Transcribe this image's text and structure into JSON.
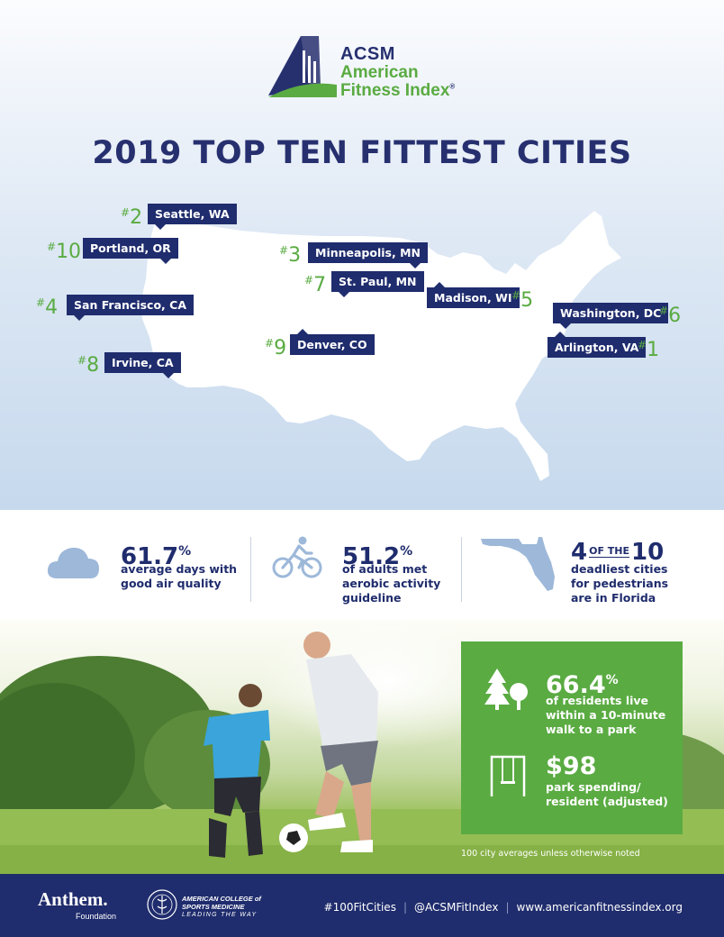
{
  "logo": {
    "acronym": "ACSM",
    "line1": "American",
    "line2": "Fitness Index",
    "registered": "®"
  },
  "headline": "2019 TOP TEN FITTEST CITIES",
  "cities": [
    {
      "rank_num": "2",
      "name": "Seattle, WA"
    },
    {
      "rank_num": "10",
      "name": "Portland, OR"
    },
    {
      "rank_num": "3",
      "name": "Minneapolis, MN"
    },
    {
      "rank_num": "7",
      "name": "St. Paul, MN"
    },
    {
      "rank_num": "5",
      "name": "Madison, WI"
    },
    {
      "rank_num": "4",
      "name": "San Francisco, CA"
    },
    {
      "rank_num": "6",
      "name": "Washington, DC"
    },
    {
      "rank_num": "9",
      "name": "Denver, CO"
    },
    {
      "rank_num": "1",
      "name": "Arlington, VA"
    },
    {
      "rank_num": "8",
      "name": "Irvine, CA"
    }
  ],
  "rank_hash": "#",
  "stats": {
    "air": {
      "value": "61.7",
      "unit": "%",
      "line1": "average days with",
      "line2": "good air quality",
      "icon": "cloud-icon"
    },
    "aerobic": {
      "value": "51.2",
      "unit": "%",
      "line1": "of adults met",
      "line2": "aerobic activity",
      "line3": "guideline",
      "icon": "cyclist-icon"
    },
    "pedestrian": {
      "num1": "4",
      "of_the": "OF THE",
      "num2": "10",
      "line1": "deadliest cities",
      "line2": "for pedestrians",
      "line3": "are in Florida",
      "icon": "florida-map-icon"
    }
  },
  "parks": {
    "walk": {
      "value": "66.4",
      "unit": "%",
      "line1": "of residents live",
      "line2": "within a 10-minute",
      "line3": "walk to a park",
      "icon": "trees-icon"
    },
    "spending": {
      "value": "$98",
      "line1": "park spending/",
      "line2": "resident (adjusted)",
      "icon": "swing-icon"
    },
    "footnote": "100 city averages unless otherwise noted"
  },
  "footer": {
    "anthem": "Anthem.",
    "anthem_sub": "Foundation",
    "acsm_name": "AMERICAN COLLEGE of SPORTS MEDICINE",
    "acsm_tag": "LEADING THE WAY",
    "hashtag": "#100FitCities",
    "sep": "|",
    "handle": "@ACSMFitIndex",
    "url": "www.americanfitnessindex.org"
  },
  "colors": {
    "navy": "#1f2c6d",
    "green": "#5aab42",
    "map": "#ffffff",
    "sky": "#c6d9ed"
  }
}
